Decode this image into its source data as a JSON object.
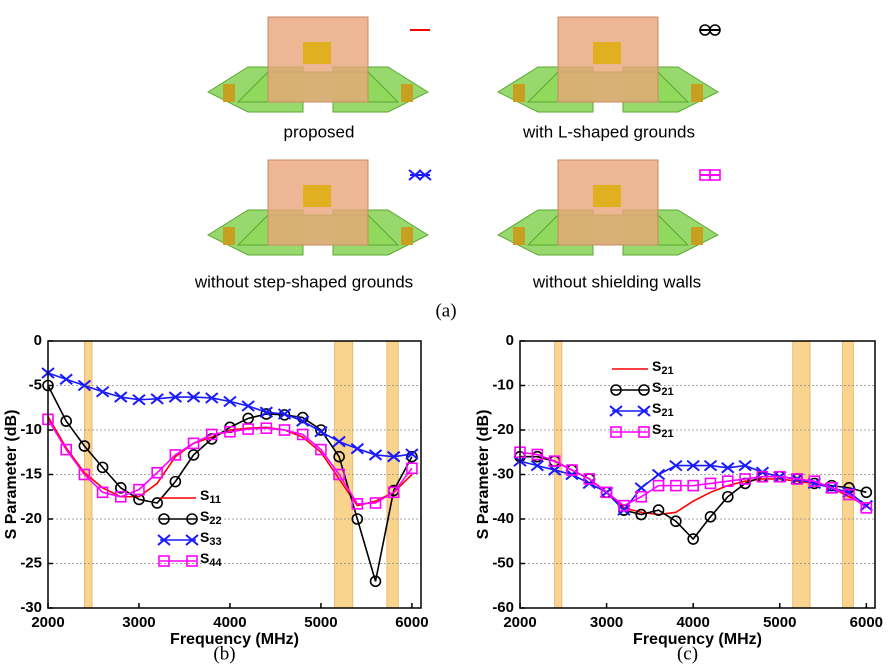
{
  "figure": {
    "panels": [
      {
        "caption": "proposed"
      },
      {
        "caption": "with L-shaped grounds"
      },
      {
        "caption": "without step-shaped grounds"
      },
      {
        "caption": "without shielding walls"
      }
    ],
    "label": "(a)"
  },
  "chart_data": [
    {
      "type": "line",
      "caption": "(b)",
      "x_label": "Frequency (MHz)",
      "y_label": "S Parameter (dB)",
      "x": [
        2000,
        2200,
        2400,
        2600,
        2800,
        3000,
        3200,
        3400,
        3600,
        3800,
        4000,
        4200,
        4400,
        4600,
        4800,
        5000,
        5200,
        5400,
        5600,
        5800,
        6000
      ],
      "xlim": [
        2000,
        6100
      ],
      "xticks": [
        2000,
        3000,
        4000,
        5000,
        6000
      ],
      "ylim": [
        -30,
        0
      ],
      "yticks": [
        0,
        -5,
        -10,
        -15,
        -20,
        -25,
        -30
      ],
      "grid": true,
      "legend": "lower left",
      "bands": [
        [
          2400,
          2484
        ],
        [
          5150,
          5350
        ],
        [
          5725,
          5850
        ]
      ],
      "band_color": "#f9d48e",
      "series": [
        {
          "name": "S11",
          "color": "#ff0000",
          "marker": "none",
          "values": [
            -8.5,
            -12,
            -14.8,
            -16.5,
            -17.5,
            -17.5,
            -16,
            -13,
            -11.5,
            -10.8,
            -10,
            -9.8,
            -9.7,
            -10,
            -10.8,
            -12.5,
            -15.5,
            -18.5,
            -18,
            -17,
            -15
          ]
        },
        {
          "name": "S22",
          "color": "#000000",
          "marker": "circle",
          "values": [
            -5,
            -9,
            -11.8,
            -14.2,
            -16.5,
            -17.8,
            -18.2,
            -15.8,
            -12.8,
            -11,
            -9.7,
            -8.7,
            -8.2,
            -8.3,
            -8.6,
            -10,
            -13,
            -20,
            -27,
            -16.8,
            -13
          ]
        },
        {
          "name": "S33",
          "color": "#1a1aff",
          "marker": "x",
          "values": [
            -3.6,
            -4.3,
            -5,
            -5.7,
            -6.3,
            -6.6,
            -6.5,
            -6.3,
            -6.3,
            -6.4,
            -6.8,
            -7.3,
            -8,
            -8.2,
            -9,
            -10.2,
            -11.3,
            -12.1,
            -12.8,
            -13,
            -12.7
          ]
        },
        {
          "name": "S44",
          "color": "#ff00ff",
          "marker": "square",
          "values": [
            -8.8,
            -12.2,
            -15,
            -17,
            -17.5,
            -16.7,
            -14.8,
            -12.8,
            -11.5,
            -10.5,
            -10.2,
            -9.9,
            -9.8,
            -10,
            -10.5,
            -12.2,
            -15,
            -18.3,
            -18.2,
            -17,
            -14.3
          ]
        }
      ]
    },
    {
      "type": "line",
      "caption": "(c)",
      "x_label": "Frequency (MHz)",
      "y_label": "S Parameter (dB)",
      "x": [
        2000,
        2200,
        2400,
        2600,
        2800,
        3000,
        3200,
        3400,
        3600,
        3800,
        4000,
        4200,
        4400,
        4600,
        4800,
        5000,
        5200,
        5400,
        5600,
        5800,
        6000
      ],
      "xlim": [
        2000,
        6100
      ],
      "xticks": [
        2000,
        3000,
        4000,
        5000,
        6000
      ],
      "ylim": [
        -60,
        0
      ],
      "yticks": [
        0,
        -10,
        -20,
        -30,
        -40,
        -50,
        -60
      ],
      "grid": true,
      "legend": "upper left",
      "bands": [
        [
          2400,
          2484
        ],
        [
          5150,
          5350
        ],
        [
          5725,
          5850
        ]
      ],
      "band_color": "#f9d48e",
      "series": [
        {
          "name": "S21",
          "color": "#ff0000",
          "marker": "none",
          "values": [
            -26,
            -26,
            -27,
            -29,
            -31,
            -34,
            -37.5,
            -38.5,
            -39,
            -38.5,
            -36,
            -34,
            -32.5,
            -31.5,
            -31,
            -31,
            -31.5,
            -32,
            -33,
            -35,
            -37
          ]
        },
        {
          "name": "S21",
          "color": "#000000",
          "marker": "circle",
          "values": [
            -26,
            -26,
            -27,
            -29,
            -31,
            -34,
            -38,
            -39,
            -38,
            -40.5,
            -44.5,
            -39.5,
            -35,
            -32,
            -30.5,
            -30.5,
            -31,
            -32,
            -32.5,
            -33,
            -34
          ]
        },
        {
          "name": "S21",
          "color": "#1a1aff",
          "marker": "x",
          "values": [
            -27,
            -28,
            -29,
            -30,
            -32,
            -34,
            -38,
            -33,
            -30,
            -28,
            -28,
            -28,
            -28.5,
            -28,
            -29.5,
            -30.5,
            -31,
            -32,
            -33,
            -34,
            -37
          ]
        },
        {
          "name": "S21",
          "color": "#ff00ff",
          "marker": "square",
          "values": [
            -25,
            -25.5,
            -27,
            -29,
            -31,
            -34,
            -37,
            -35,
            -32.5,
            -32.5,
            -32.5,
            -32,
            -31.5,
            -31,
            -30.5,
            -30.5,
            -31,
            -31.5,
            -33,
            -34.5,
            -37.5
          ]
        }
      ]
    }
  ]
}
